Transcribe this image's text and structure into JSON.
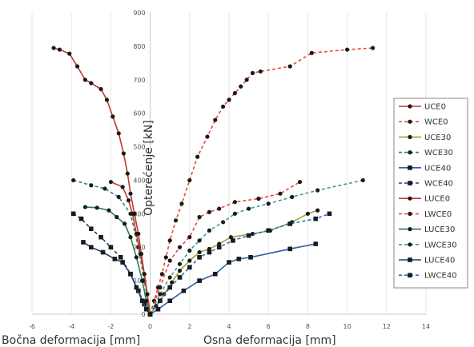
{
  "chart_data": {
    "type": "line",
    "title": "",
    "xlabel_left": "Bočna deformacija [mm]",
    "xlabel_right": "Osna deformacija [mm]",
    "ylabel": "Opterećenje [kN]",
    "xlim": [
      -6,
      14
    ],
    "ylim": [
      0,
      900
    ],
    "xticks": [
      -6,
      -4,
      -2,
      0,
      2,
      4,
      6,
      8,
      10,
      12,
      14
    ],
    "yticks": [
      0,
      100,
      200,
      300,
      400,
      500,
      600,
      700,
      800,
      900
    ],
    "grid": "vertical",
    "legend": "right",
    "series": [
      {
        "name": "UCE0",
        "color": "#c0392b",
        "dash": false,
        "marker": "circle",
        "x": [
          -4.9,
          -4.6,
          -4.1,
          -3.7,
          -3.3,
          -3.0,
          -2.5,
          -2.2,
          -1.9,
          -1.6,
          -1.35,
          -1.15,
          -1.0,
          -0.8,
          -0.6,
          -0.45,
          -0.3,
          -0.15,
          0
        ],
        "y": [
          795,
          790,
          778,
          740,
          700,
          690,
          672,
          640,
          590,
          540,
          480,
          420,
          360,
          300,
          240,
          180,
          120,
          60,
          0
        ]
      },
      {
        "name": "WCE0",
        "color": "#e74c3c",
        "dash": true,
        "marker": "circle",
        "x": [
          0,
          0.2,
          0.4,
          0.6,
          0.8,
          1.0,
          1.3,
          1.6,
          2.0,
          2.4,
          2.9,
          3.3,
          3.7,
          4.0,
          4.3,
          4.6,
          4.9,
          5.2,
          5.6,
          7.1,
          8.2,
          10.0,
          11.3
        ],
        "y": [
          0,
          40,
          80,
          120,
          170,
          220,
          280,
          330,
          400,
          470,
          530,
          580,
          620,
          640,
          660,
          680,
          700,
          720,
          725,
          740,
          780,
          790,
          795
        ]
      },
      {
        "name": "UCE30",
        "color": "#9aa831",
        "dash": false,
        "marker": "circle",
        "x": [
          0,
          0.3,
          0.7,
          1.1,
          1.5,
          2.0,
          2.5,
          3.0,
          3.5,
          4.1,
          5.2,
          6.1,
          7.2,
          8.0,
          8.5
        ],
        "y": [
          0,
          25,
          60,
          95,
          130,
          160,
          185,
          195,
          210,
          230,
          240,
          250,
          275,
          300,
          310
        ]
      },
      {
        "name": "WCE30",
        "color": "#1e8a6e",
        "dash": true,
        "marker": "circle",
        "x": [
          -3.9,
          -3.0,
          -2.3,
          -1.6,
          -1.0,
          -0.6,
          -0.3,
          0
        ],
        "y": [
          400,
          385,
          375,
          350,
          300,
          200,
          100,
          0
        ]
      },
      {
        "name": "UCE40",
        "color": "#2e5fa5",
        "dash": false,
        "marker": "square",
        "x": [
          0,
          0.4,
          1.0,
          1.7,
          2.5,
          3.3,
          4.0,
          4.5,
          5.1,
          7.1,
          8.4
        ],
        "y": [
          0,
          15,
          40,
          70,
          100,
          120,
          155,
          165,
          170,
          195,
          210
        ]
      },
      {
        "name": "WCE40",
        "color": "#1f3f7a",
        "dash": true,
        "marker": "square",
        "x": [
          -3.9,
          -3.5,
          -3.0,
          -2.5,
          -2.0,
          -1.5,
          -1.0,
          -0.6,
          -0.3,
          0
        ],
        "y": [
          300,
          285,
          255,
          230,
          200,
          170,
          120,
          70,
          30,
          0
        ]
      },
      {
        "name": "LUCE0",
        "color": "#c0392b",
        "dash": false,
        "marker": "circle",
        "x": [
          -2.0,
          -1.4,
          -1.1,
          -0.9,
          -0.7,
          -0.5,
          -0.3,
          -0.15,
          0
        ],
        "y": [
          395,
          380,
          340,
          300,
          240,
          180,
          120,
          60,
          0
        ]
      },
      {
        "name": "LWCE0",
        "color": "#e74c3c",
        "dash": true,
        "marker": "circle",
        "x": [
          0,
          0.5,
          1.0,
          1.5,
          2.0,
          2.5,
          3.0,
          3.5,
          4.3,
          5.5,
          6.6,
          7.6
        ],
        "y": [
          0,
          80,
          160,
          200,
          230,
          290,
          305,
          315,
          335,
          345,
          360,
          395
        ]
      },
      {
        "name": "LUCE30",
        "color": "#2e7d4f",
        "dash": false,
        "marker": "circle",
        "x": [
          -3.3,
          -2.7,
          -2.1,
          -1.7,
          -1.3,
          -1.0,
          -0.7,
          -0.4,
          -0.2,
          0
        ],
        "y": [
          320,
          318,
          310,
          290,
          270,
          230,
          170,
          100,
          40,
          0
        ]
      },
      {
        "name": "LWCE30",
        "color": "#3a9e8a",
        "dash": true,
        "marker": "circle",
        "x": [
          0,
          0.5,
          1.0,
          1.5,
          2.0,
          2.5,
          3.0,
          3.7,
          4.3,
          5.0,
          6.0,
          7.2,
          8.5,
          10.8
        ],
        "y": [
          0,
          60,
          110,
          150,
          190,
          220,
          250,
          275,
          300,
          315,
          330,
          350,
          370,
          400
        ]
      },
      {
        "name": "LUCE40",
        "color": "#1f3f7a",
        "dash": false,
        "marker": "square",
        "x": [
          -3.4,
          -3.0,
          -2.4,
          -1.8,
          -1.4,
          -1.0,
          -0.7,
          -0.4,
          -0.2,
          0
        ],
        "y": [
          215,
          200,
          185,
          165,
          155,
          120,
          80,
          40,
          15,
          0
        ]
      },
      {
        "name": "LWCE40",
        "color": "#2e6fc5",
        "dash": true,
        "marker": "square",
        "x": [
          0,
          0.5,
          1.0,
          1.5,
          2.0,
          2.5,
          3.0,
          3.5,
          4.2,
          5.0,
          6.0,
          7.1,
          8.4,
          9.1
        ],
        "y": [
          0,
          40,
          80,
          110,
          140,
          170,
          185,
          200,
          220,
          235,
          250,
          270,
          285,
          300
        ]
      }
    ]
  }
}
